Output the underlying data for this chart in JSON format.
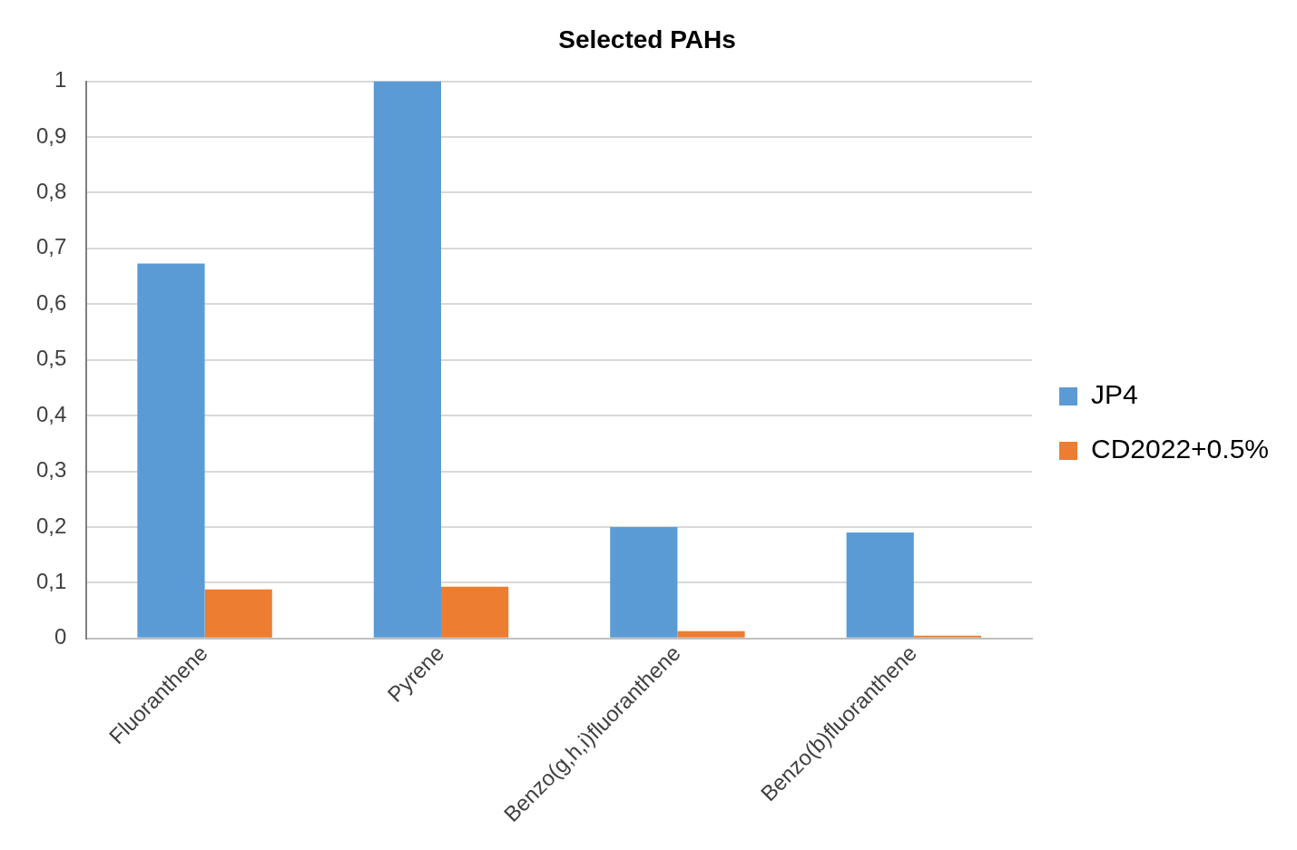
{
  "chart_data": {
    "type": "bar",
    "title": "Selected PAHs",
    "categories": [
      "Fluoranthene",
      "Pyrene",
      "Benzo(g,h,i)fluoranthene",
      "Benzo(b)fluoranthene"
    ],
    "series": [
      {
        "name": "JP4",
        "color": "#5b9bd5",
        "values": [
          0.673,
          1.0,
          0.2,
          0.19
        ]
      },
      {
        "name": "CD2022+0.5%",
        "color": "#ed7d31",
        "values": [
          0.088,
          0.093,
          0.013,
          0.005
        ]
      }
    ],
    "ylim": [
      0,
      1
    ],
    "yticks": [
      0,
      {
        "value": 0.1,
        "label": "0,1"
      },
      {
        "value": 0.2,
        "label": "0,2"
      },
      {
        "value": 0.3,
        "label": "0,3"
      },
      {
        "value": 0.4,
        "label": "0,4"
      },
      {
        "value": 0.5,
        "label": "0,5"
      },
      {
        "value": 0.6,
        "label": "0,6"
      },
      {
        "value": 0.7,
        "label": "0,7"
      },
      {
        "value": 0.8,
        "label": "0,8"
      },
      {
        "value": 0.9,
        "label": "0,9"
      },
      1
    ],
    "grid": "y",
    "legend": "right"
  }
}
